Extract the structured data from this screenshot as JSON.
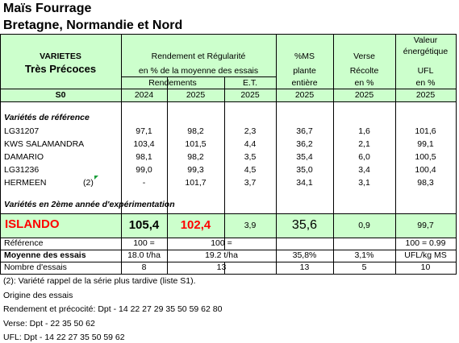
{
  "header": {
    "title": "Maïs Fourrage",
    "subtitle": "Bretagne, Normandie et Nord"
  },
  "table_header": {
    "varietes": "VARIETES",
    "group": "Très Précoces",
    "code": "S0",
    "rendement_title": "Rendement et Régularité",
    "rendement_sub": "en % de la moyenne des essais",
    "rendements": "Rendements",
    "et": "E.T.",
    "ms": "%MS",
    "ms_sub1": "plante",
    "ms_sub2": "entière",
    "verse": "Verse",
    "verse_sub1": "Récolte",
    "verse_sub2": "en %",
    "ufl1": "Valeur",
    "ufl2": "énergétique",
    "ufl_sub1": "UFL",
    "ufl_sub2": "en %",
    "years": [
      "2024",
      "2025",
      "2025",
      "2025",
      "2025",
      "2025"
    ]
  },
  "reference": {
    "title": "Variétés de référence",
    "rows": [
      {
        "name": "LG31207",
        "values": [
          "97,1",
          "98,2",
          "2,3",
          "36,7",
          "1,6",
          "101,6"
        ]
      },
      {
        "name": "KWS SALAMANDRA",
        "values": [
          "103,4",
          "101,5",
          "4,4",
          "36,2",
          "2,1",
          "99,1"
        ]
      },
      {
        "name": "DAMARIO",
        "values": [
          "98,1",
          "98,2",
          "3,5",
          "35,4",
          "6,0",
          "100,5"
        ]
      },
      {
        "name": "LG31236",
        "values": [
          "99,0",
          "99,3",
          "4,5",
          "35,0",
          "3,4",
          "100,4"
        ]
      },
      {
        "name": "HERMEEN",
        "note": "(2)",
        "values": [
          "-",
          "101,7",
          "3,7",
          "34,1",
          "3,1",
          "98,3"
        ]
      }
    ]
  },
  "trial": {
    "title": "Variétés en 2ème année d'expérimentation",
    "name": "ISLANDO",
    "values": [
      "105,4",
      "102,4",
      "3,9",
      "35,6",
      "0,9",
      "99,7"
    ]
  },
  "footer": {
    "ref_label": "Référence",
    "ref_2024": "100 =",
    "ref_2025": "100 =",
    "ref_ufl": "100 = 0.99",
    "mean_label": "Moyenne des essais",
    "mean_2024": "18.0 t/ha",
    "mean_2025": "19.2 t/ha",
    "mean_ms": "35,8%",
    "mean_verse": "3,1%",
    "mean_ufl": "UFL/kg MS",
    "count_label": "Nombre d'essais",
    "count_2024": "8",
    "count_2025": "13",
    "count_ms": "13",
    "count_verse": "5",
    "count_ufl": "10"
  },
  "notes": [
    "(2): Variété rappel de la série plus tardive (liste S1).",
    "Origine des essais",
    "Rendement et précocité: Dpt - 14 22 27 29 35 50 59 62 80",
    "Verse: Dpt - 22 35 50 62",
    "UFL: Dpt - 14 22 27 35 50 59 62"
  ]
}
